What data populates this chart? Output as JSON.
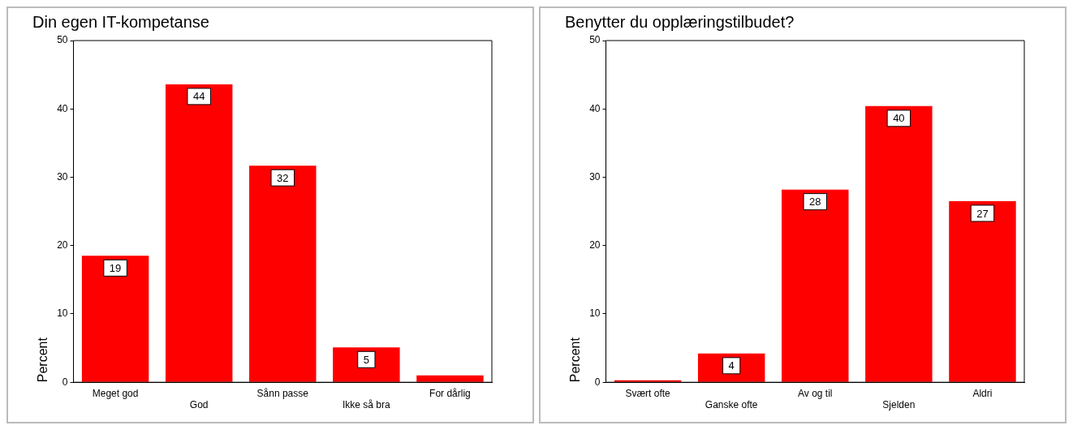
{
  "chart_data": [
    {
      "type": "bar",
      "title": "Din egen IT-kompetanse",
      "ylabel": "Percent",
      "categories": [
        "Meget god",
        "God",
        "Sånn passe",
        "Ikke så bra",
        "For dårlig"
      ],
      "values": [
        18.5,
        43.6,
        31.7,
        5.1,
        1.0
      ],
      "value_labels": [
        "19",
        "44",
        "32",
        "5",
        null
      ],
      "color": "#ff0000",
      "ylim": [
        0,
        50
      ],
      "yticks": [
        0,
        10,
        20,
        30,
        40,
        50
      ],
      "grid": false,
      "legend": false
    },
    {
      "type": "bar",
      "title": "Benytter du opplæringstilbudet?",
      "ylabel": "Percent",
      "categories": [
        "Svært ofte",
        "Ganske ofte",
        "Av og til",
        "Sjelden",
        "Aldri"
      ],
      "values": [
        0.3,
        4.2,
        28.2,
        40.4,
        26.5
      ],
      "value_labels": [
        null,
        "4",
        "28",
        "40",
        "27"
      ],
      "color": "#ff0000",
      "ylim": [
        0,
        50
      ],
      "yticks": [
        0,
        10,
        20,
        30,
        40,
        50
      ],
      "grid": false,
      "legend": false
    }
  ]
}
